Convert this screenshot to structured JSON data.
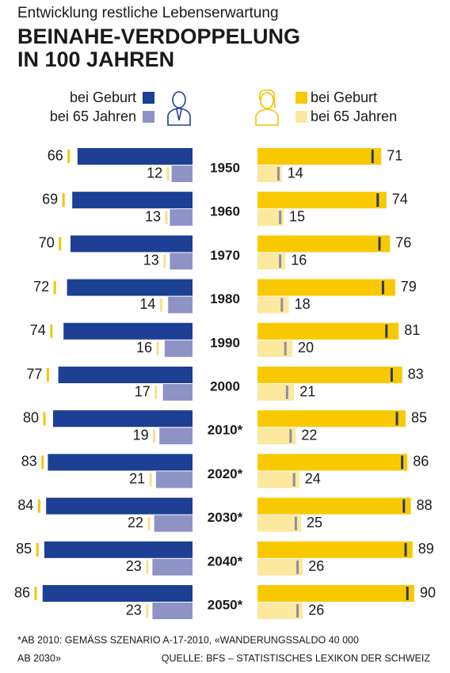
{
  "chart_data": {
    "type": "butterfly",
    "subtitle": "Entwicklung restliche Lebenserwartung",
    "title": [
      "BEINAHE-VERDOPPELUNG",
      "IN 100 JAHREN"
    ],
    "categories": [
      "1950",
      "1960",
      "1970",
      "1980",
      "1990",
      "2000",
      "2010*",
      "2020*",
      "2030*",
      "2040*",
      "2050*"
    ],
    "series": [
      {
        "name": "bei Geburt",
        "color": "#1d3f94",
        "side": "left",
        "values": [
          66,
          69,
          70,
          72,
          74,
          77,
          80,
          83,
          84,
          85,
          86
        ]
      },
      {
        "name": "bei 65 Jahren",
        "color": "#8e93c6",
        "side": "left",
        "values": [
          12,
          13,
          13,
          14,
          16,
          17,
          19,
          21,
          22,
          23,
          23
        ]
      },
      {
        "name": "bei Geburt",
        "color": "#f9c900",
        "side": "right",
        "values": [
          71,
          74,
          76,
          79,
          81,
          83,
          85,
          86,
          88,
          89,
          90
        ]
      },
      {
        "name": "bei 65 Jahren",
        "color": "#fce89e",
        "side": "right",
        "values": [
          14,
          15,
          16,
          18,
          20,
          21,
          22,
          24,
          25,
          26,
          26
        ]
      }
    ],
    "note": [
      "*AB 2010: GEMÄSS SZENARIO A-17-2010, «WANDERUNGSSALDO 40 000",
      "AB 2030»"
    ],
    "source": "QUELLE: BFS – STATISTISCHES LEXIKON DER SCHWEIZ"
  }
}
